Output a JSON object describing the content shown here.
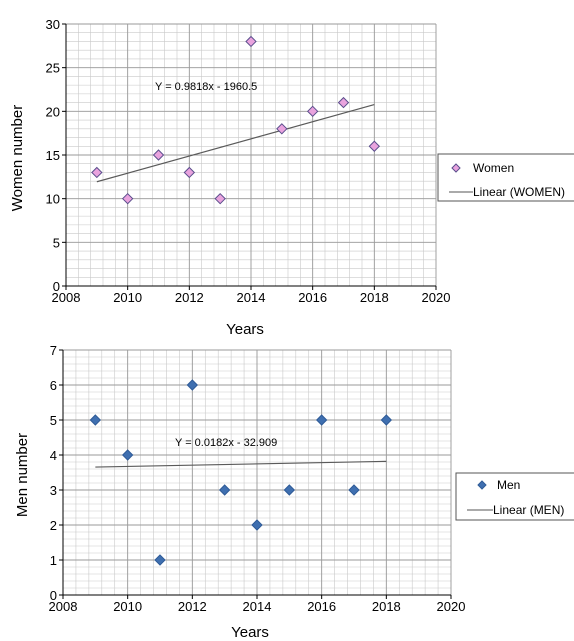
{
  "chart_data": [
    {
      "type": "scatter",
      "title": "",
      "xlabel": "Years",
      "ylabel": "Women number",
      "xlim": [
        2008,
        2020
      ],
      "ylim": [
        0,
        30
      ],
      "xticks": [
        "2008",
        "2010",
        "2012",
        "2014",
        "2016",
        "2018",
        "2020"
      ],
      "yticks": [
        "0",
        "5",
        "10",
        "15",
        "20",
        "25",
        "30"
      ],
      "grid": true,
      "legend_position": "right",
      "marker_color": "#e9a3de",
      "marker_edge": "#5a4e8c",
      "series": [
        {
          "name": "Women",
          "x": [
            2009,
            2010,
            2011,
            2012,
            2013,
            2014,
            2015,
            2016,
            2017,
            2018
          ],
          "y": [
            13,
            10,
            15,
            13,
            10,
            28,
            18,
            20,
            21,
            16
          ]
        }
      ],
      "trendline": {
        "name": "Linear (WOMEN)",
        "equation": "Y = 0.9818x - 1960.5",
        "slope": 0.9818,
        "intercept": -1960.5,
        "x_range": [
          2009,
          2018
        ]
      }
    },
    {
      "type": "scatter",
      "title": "",
      "xlabel": "Years",
      "ylabel": "Men number",
      "xlim": [
        2008,
        2020
      ],
      "ylim": [
        0,
        7
      ],
      "xticks": [
        "2008",
        "2010",
        "2012",
        "2014",
        "2016",
        "2018",
        "2020"
      ],
      "yticks": [
        "0",
        "1",
        "2",
        "3",
        "4",
        "5",
        "6",
        "7"
      ],
      "grid": true,
      "legend_position": "right",
      "marker_color": "#3f6fb0",
      "marker_edge": "#2f5b97",
      "series": [
        {
          "name": "Men",
          "x": [
            2009,
            2010,
            2011,
            2012,
            2013,
            2014,
            2015,
            2016,
            2017,
            2018
          ],
          "y": [
            5,
            4,
            1,
            6,
            3,
            2,
            3,
            5,
            3,
            5
          ]
        }
      ],
      "trendline": {
        "name": "Linear (MEN)",
        "equation": "Y = 0.0182x - 32.909",
        "slope": 0.0182,
        "intercept": -32.909,
        "x_range": [
          2009,
          2018
        ]
      }
    }
  ]
}
